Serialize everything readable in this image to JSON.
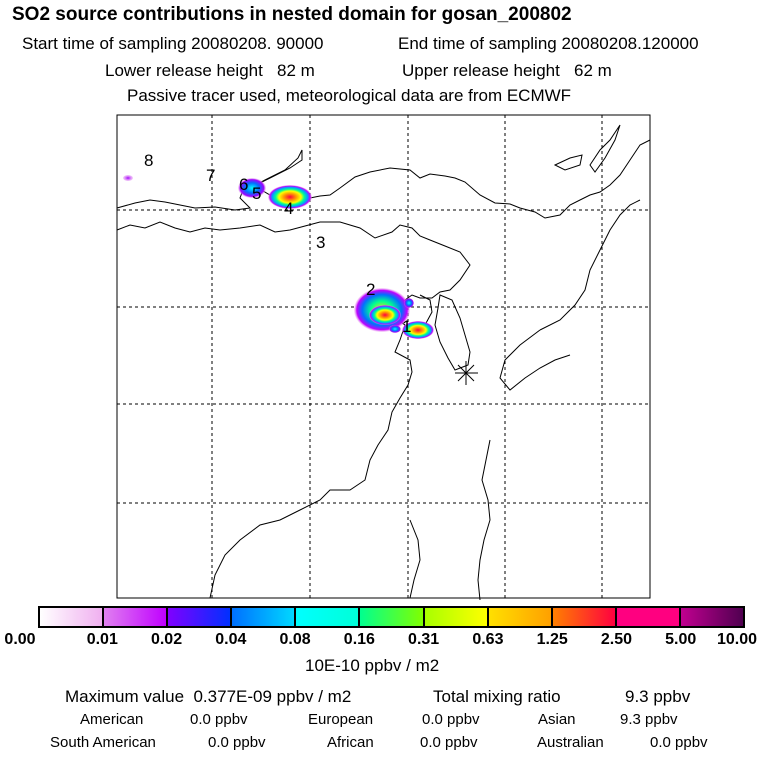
{
  "header": {
    "title": "SO2 source contributions in nested domain for gosan_200802",
    "start_time": "Start time of sampling 20080208. 90000",
    "end_time": "End time of sampling 20080208.120000",
    "lower_height": "Lower release height   82 m",
    "upper_height": "Upper release height   62 m",
    "note": "Passive tracer used, meteorological data are from ECMWF"
  },
  "map": {
    "source_labels": [
      "1",
      "2",
      "3",
      "4",
      "5",
      "6",
      "7",
      "8"
    ],
    "receptor_marker": "asterisk-icon"
  },
  "colorbar": {
    "ticks": [
      "0.00",
      "0.01",
      "0.02",
      "0.04",
      "0.08",
      "0.16",
      "0.31",
      "0.63",
      "1.25",
      "2.50",
      "5.00",
      "10.00"
    ],
    "unit": "10E-10 ppbv / m2",
    "colors": [
      [
        "#ffffff",
        "#f0b0f0"
      ],
      [
        "#e080f0",
        "#c000ff"
      ],
      [
        "#8000ff",
        "#0030ff"
      ],
      [
        "#0070ff",
        "#00d8ff"
      ],
      [
        "#00ffff",
        "#00ffd8"
      ],
      [
        "#00ff90",
        "#80ff00"
      ],
      [
        "#a8ff00",
        "#ffff00"
      ],
      [
        "#ffe000",
        "#ffa000"
      ],
      [
        "#ff8000",
        "#ff0040"
      ],
      [
        "#ff0080",
        "#ff0080"
      ],
      [
        "#c00090",
        "#500050"
      ]
    ]
  },
  "summary": {
    "max_value": "Maximum value  0.377E-09 ppbv / m2",
    "total_label": "Total mixing ratio",
    "total_value": "9.3 ppbv",
    "regions": [
      {
        "name": "American",
        "value": "0.0 ppbv"
      },
      {
        "name": "European",
        "value": "0.0 ppbv"
      },
      {
        "name": "Asian",
        "value": "9.3 ppbv"
      },
      {
        "name": "South American",
        "value": "0.0 ppbv"
      },
      {
        "name": "African",
        "value": "0.0 ppbv"
      },
      {
        "name": "Australian",
        "value": "0.0 ppbv"
      }
    ]
  }
}
